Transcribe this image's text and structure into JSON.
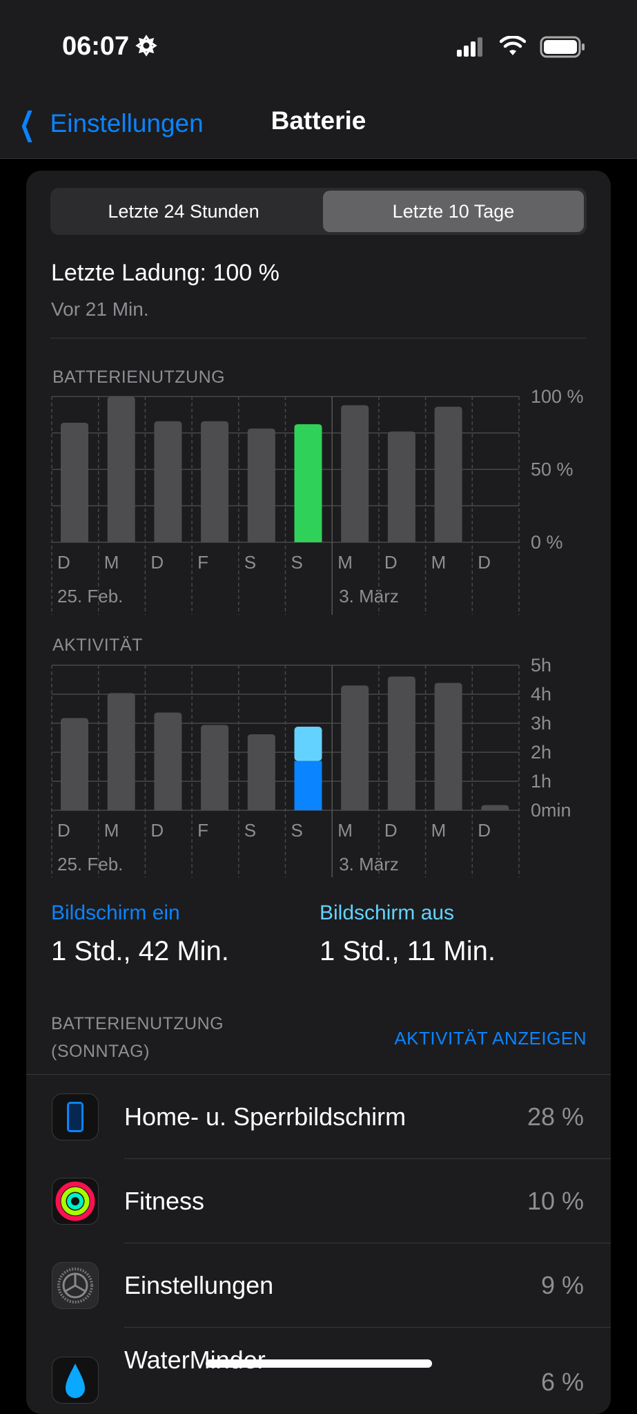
{
  "status": {
    "time": "06:07"
  },
  "nav": {
    "back": "Einstellungen",
    "title": "Batterie"
  },
  "segments": [
    "Letzte 24 Stunden",
    "Letzte 10 Tage"
  ],
  "selected_segment": 1,
  "last_charge": {
    "title": "Letzte Ladung: 100 %",
    "sub": "Vor 21 Min."
  },
  "chart_data": [
    {
      "type": "bar",
      "title": "BATTERIENUTZUNG",
      "categories": [
        "D",
        "M",
        "D",
        "F",
        "S",
        "S",
        "M",
        "D",
        "M",
        "D"
      ],
      "date_labels": [
        "25. Feb.",
        "3. März"
      ],
      "values": [
        82,
        100,
        83,
        83,
        78,
        81,
        94,
        76,
        93,
        null
      ],
      "highlight_index": 5,
      "highlight_color": "#30d158",
      "bar_color": "#4d4d4f",
      "yticks": [
        "0 %",
        "50 %",
        "100 %"
      ],
      "ylim": [
        0,
        100
      ]
    },
    {
      "type": "bar",
      "title": "AKTIVITÄT",
      "categories": [
        "D",
        "M",
        "D",
        "F",
        "S",
        "S",
        "M",
        "D",
        "M",
        "D"
      ],
      "date_labels": [
        "25. Feb.",
        "3. März"
      ],
      "values_hours": [
        3.18,
        4.04,
        3.37,
        2.94,
        2.62,
        2.88,
        4.3,
        4.61,
        4.39,
        0.18
      ],
      "highlight_index": 5,
      "highlight_series": [
        {
          "name": "Bildschirm ein",
          "value_hours": 1.7,
          "color": "#0a84ff"
        },
        {
          "name": "Bildschirm aus",
          "value_hours": 1.18,
          "color": "#64d2ff"
        }
      ],
      "bar_color": "#4d4d4f",
      "yticks": [
        "0min",
        "1h",
        "2h",
        "3h",
        "4h",
        "5h"
      ],
      "ylim": [
        0,
        5
      ]
    }
  ],
  "screen": {
    "on_label": "Bildschirm ein",
    "on_value": "1 Std., 42 Min.",
    "off_label": "Bildschirm aus",
    "off_value": "1 Std., 11 Min."
  },
  "usage": {
    "title1": "BATTERIENUTZUNG",
    "title2": "(SONNTAG)",
    "link": "AKTIVITÄT ANZEIGEN"
  },
  "apps": [
    {
      "name": "Home- u. Sperrbildschirm",
      "pct": "28 %",
      "icon": "phone-screen-icon"
    },
    {
      "name": "Fitness",
      "pct": "10 %",
      "icon": "fitness-rings-icon"
    },
    {
      "name": "Einstellungen",
      "pct": "9 %",
      "icon": "settings-gear-icon"
    },
    {
      "name": "WaterMinder",
      "pct": "6 %",
      "icon": "water-drop-icon"
    }
  ]
}
